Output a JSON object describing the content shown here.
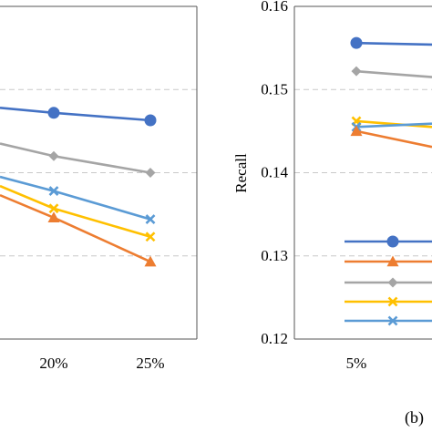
{
  "chart_data": [
    {
      "type": "line",
      "categories": [
        "20%",
        "25%"
      ],
      "ylim": [
        0.12,
        0.16
      ],
      "grid": true,
      "xlabel": "",
      "ylabel": "",
      "legend": "none",
      "series": [
        {
          "color": "#4472C4",
          "marker": "circle",
          "values": [
            0.1472,
            0.1463
          ]
        },
        {
          "color": "#A5A5A5",
          "marker": "diamond",
          "values": [
            0.142,
            0.14
          ]
        },
        {
          "color": "#5B9BD5",
          "marker": "x",
          "values": [
            0.1378,
            0.1344
          ]
        },
        {
          "color": "#FFC000",
          "marker": "x",
          "values": [
            0.1357,
            0.1323
          ]
        },
        {
          "color": "#ED7D31",
          "marker": "triangle",
          "values": [
            0.1346,
            0.1293
          ]
        }
      ]
    },
    {
      "type": "line",
      "categories": [
        "5%"
      ],
      "ylim": [
        0.12,
        0.16
      ],
      "yticks": [
        "0.12",
        "0.13",
        "0.14",
        "0.15",
        "0.16"
      ],
      "grid": true,
      "xlabel": "",
      "ylabel": "Recall",
      "legend": "lower-right",
      "panel_label": "(b)",
      "series": [
        {
          "color": "#4472C4",
          "marker": "circle",
          "values": [
            0.1556
          ]
        },
        {
          "color": "#A5A5A5",
          "marker": "diamond",
          "values": [
            0.1522
          ]
        },
        {
          "color": "#FFC000",
          "marker": "x",
          "values": [
            0.1462
          ]
        },
        {
          "color": "#5B9BD5",
          "marker": "x",
          "values": [
            0.1455
          ]
        },
        {
          "color": "#ED7D31",
          "marker": "triangle",
          "values": [
            0.145
          ]
        }
      ],
      "legend_entries": [
        {
          "color": "#4472C4",
          "marker": "circle"
        },
        {
          "color": "#ED7D31",
          "marker": "triangle"
        },
        {
          "color": "#A5A5A5",
          "marker": "diamond"
        },
        {
          "color": "#FFC000",
          "marker": "x"
        },
        {
          "color": "#5B9BD5",
          "marker": "x"
        }
      ]
    }
  ]
}
